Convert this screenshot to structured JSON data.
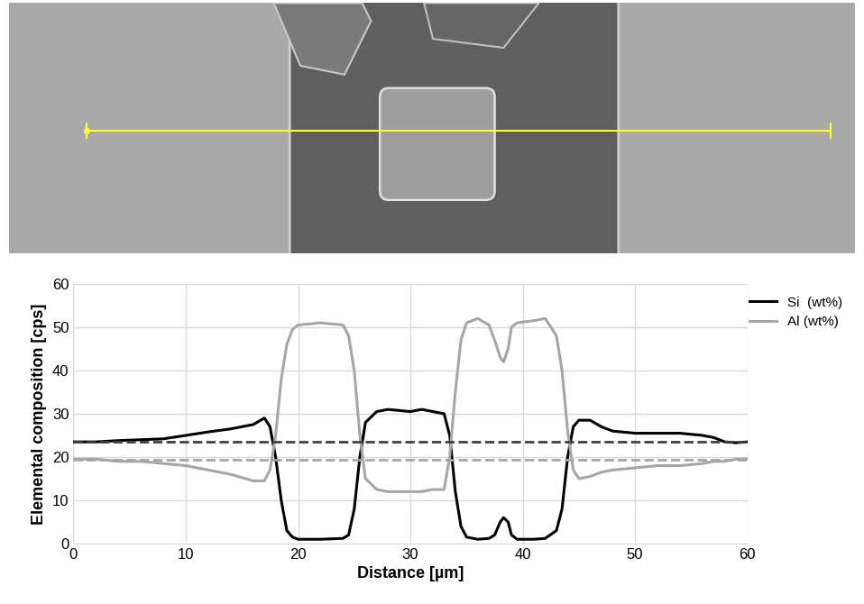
{
  "chart_data": {
    "type": "line",
    "x_label": "Distance [µm]",
    "y_label": "Elemental composition [cps]",
    "x": [
      0,
      2,
      4,
      6,
      8,
      10,
      12,
      14,
      16,
      17,
      17.5,
      18,
      18.5,
      19,
      19.5,
      20,
      22,
      24,
      24.5,
      25,
      25.5,
      26,
      27,
      28,
      30,
      31,
      32,
      33,
      33.5,
      34,
      34.5,
      35,
      36,
      37,
      37.5,
      38,
      38.3,
      38.7,
      39,
      39.5,
      41,
      42,
      43,
      43.5,
      44,
      44.5,
      45,
      46,
      47,
      48,
      50,
      52,
      54,
      56,
      57,
      58,
      59,
      60
    ],
    "series": [
      {
        "name": "Si  (wt%)",
        "color": "#000000",
        "line_style": "solid",
        "values": [
          23.5,
          23.5,
          23.8,
          24,
          24.2,
          25,
          25.8,
          26.5,
          27.5,
          29,
          27,
          20,
          10,
          3,
          1.5,
          1,
          1,
          1.2,
          2,
          8,
          20,
          28,
          30.5,
          31,
          30.5,
          31,
          30.5,
          30,
          25,
          12,
          4,
          1.5,
          1,
          1.2,
          2,
          5,
          6,
          5,
          2,
          1,
          1,
          1.2,
          3,
          8,
          20,
          27,
          28.5,
          28.5,
          27,
          26,
          25.5,
          25.5,
          25.5,
          25,
          24.5,
          23.5,
          23.3,
          23.5
        ]
      },
      {
        "name": "Al (wt%)",
        "color": "#a6a6a6",
        "line_style": "solid",
        "values": [
          19.5,
          19.5,
          19,
          19,
          18.5,
          18,
          17,
          16,
          14.5,
          14.5,
          17,
          25,
          38,
          46,
          49.5,
          50.5,
          51,
          50.5,
          48,
          40,
          25,
          15,
          12.5,
          12,
          12,
          12,
          12.5,
          12.5,
          20,
          35,
          47,
          51,
          52,
          50.5,
          47,
          43,
          42,
          45,
          50,
          51,
          51.5,
          52,
          48,
          40,
          26,
          17,
          15,
          15.5,
          16.5,
          17,
          17.5,
          18,
          18,
          18.5,
          19,
          19,
          19.5,
          19.5
        ]
      },
      {
        "color": "#404040",
        "line_style": "dashed",
        "x": [
          0,
          60
        ],
        "values": [
          23.5,
          23.5
        ]
      },
      {
        "color": "#a6a6a6",
        "line_style": "dashed",
        "x": [
          0,
          60
        ],
        "values": [
          19.3,
          19.3
        ]
      }
    ],
    "xlim": [
      0,
      60
    ],
    "xticks": [
      0,
      10,
      20,
      30,
      40,
      50,
      60
    ],
    "ylim": [
      0,
      60
    ],
    "yticks": [
      0,
      10,
      20,
      30,
      40,
      50,
      60
    ],
    "grid": true,
    "legend": "upper right"
  }
}
